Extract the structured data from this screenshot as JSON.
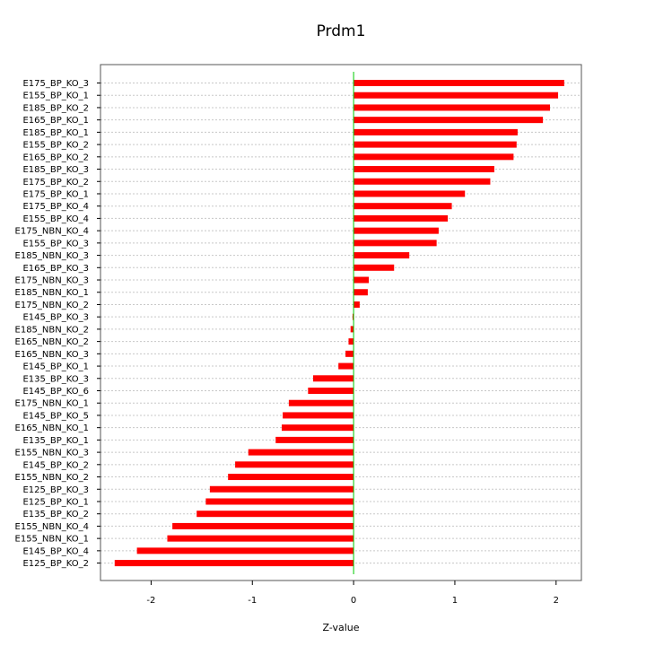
{
  "chart_data": {
    "type": "bar",
    "orientation": "horizontal",
    "title": "Prdm1",
    "xlabel": "Z-value",
    "ylabel": "",
    "xlim": [
      -2.5,
      2.25
    ],
    "xticks": [
      -2,
      -1,
      0,
      1,
      2
    ],
    "grid": "horizontal dotted",
    "legend": "none",
    "categories": [
      "E175_BP_KO_3",
      "E155_BP_KO_1",
      "E185_BP_KO_2",
      "E165_BP_KO_1",
      "E185_BP_KO_1",
      "E155_BP_KO_2",
      "E165_BP_KO_2",
      "E185_BP_KO_3",
      "E175_BP_KO_2",
      "E175_BP_KO_1",
      "E175_BP_KO_4",
      "E155_BP_KO_4",
      "E175_NBN_KO_4",
      "E155_BP_KO_3",
      "E185_NBN_KO_3",
      "E165_BP_KO_3",
      "E175_NBN_KO_3",
      "E185_NBN_KO_1",
      "E175_NBN_KO_2",
      "E145_BP_KO_3",
      "E185_NBN_KO_2",
      "E165_NBN_KO_2",
      "E165_NBN_KO_3",
      "E145_BP_KO_1",
      "E135_BP_KO_3",
      "E145_BP_KO_6",
      "E175_NBN_KO_1",
      "E145_BP_KO_5",
      "E165_NBN_KO_1",
      "E135_BP_KO_1",
      "E155_NBN_KO_3",
      "E145_BP_KO_2",
      "E155_NBN_KO_2",
      "E125_BP_KO_3",
      "E125_BP_KO_1",
      "E135_BP_KO_2",
      "E155_NBN_KO_4",
      "E155_NBN_KO_1",
      "E145_BP_KO_4",
      "E125_BP_KO_2"
    ],
    "values": [
      2.08,
      2.02,
      1.94,
      1.87,
      1.62,
      1.61,
      1.58,
      1.39,
      1.35,
      1.1,
      0.97,
      0.93,
      0.84,
      0.82,
      0.55,
      0.4,
      0.15,
      0.14,
      0.06,
      -0.01,
      -0.03,
      -0.05,
      -0.08,
      -0.15,
      -0.4,
      -0.45,
      -0.64,
      -0.7,
      -0.71,
      -0.77,
      -1.04,
      -1.17,
      -1.24,
      -1.42,
      -1.46,
      -1.55,
      -1.79,
      -1.84,
      -2.14,
      -2.36
    ],
    "colors": {
      "bar": "#ff0000",
      "zero_line": "#00cc00",
      "grid": "#c8c8c8",
      "frame": "#555555"
    }
  }
}
